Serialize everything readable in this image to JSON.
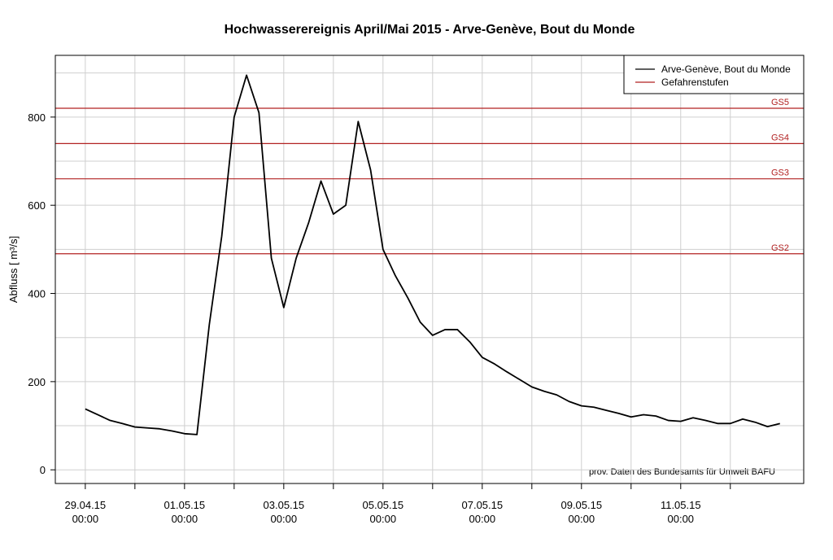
{
  "chart_data": {
    "type": "line",
    "title": "Hochwasserereignis April/Mai 2015 - Arve-Genève, Bout du Monde",
    "y_label": "Abfluss [ m³/s]",
    "annotation": "prov. Daten des Bundesamts für Umwelt BAFU",
    "x": [
      "29.04.15 00:00",
      "29.04.15 06:00",
      "29.04.15 12:00",
      "29.04.15 18:00",
      "30.04.15 00:00",
      "30.04.15 06:00",
      "30.04.15 12:00",
      "30.04.15 18:00",
      "01.05.15 00:00",
      "01.05.15 06:00",
      "01.05.15 12:00",
      "01.05.15 18:00",
      "02.05.15 00:00",
      "02.05.15 06:00",
      "02.05.15 12:00",
      "02.05.15 18:00",
      "03.05.15 00:00",
      "03.05.15 06:00",
      "03.05.15 12:00",
      "03.05.15 18:00",
      "04.05.15 00:00",
      "04.05.15 06:00",
      "04.05.15 12:00",
      "04.05.15 18:00",
      "05.05.15 00:00",
      "05.05.15 06:00",
      "05.05.15 12:00",
      "05.05.15 18:00",
      "06.05.15 00:00",
      "06.05.15 06:00",
      "06.05.15 12:00",
      "06.05.15 18:00",
      "07.05.15 00:00",
      "07.05.15 06:00",
      "07.05.15 12:00",
      "07.05.15 18:00",
      "08.05.15 00:00",
      "08.05.15 06:00",
      "08.05.15 12:00",
      "08.05.15 18:00",
      "09.05.15 00:00",
      "09.05.15 06:00",
      "09.05.15 12:00",
      "09.05.15 18:00",
      "10.05.15 00:00",
      "10.05.15 06:00",
      "10.05.15 12:00",
      "10.05.15 18:00",
      "11.05.15 00:00",
      "11.05.15 06:00",
      "11.05.15 12:00",
      "11.05.15 18:00",
      "12.05.15 00:00",
      "12.05.15 06:00",
      "12.05.15 12:00",
      "12.05.15 18:00",
      "13.05.15 00:00"
    ],
    "series": [
      {
        "name": "Arve-Genève, Bout du Monde",
        "color": "#000000",
        "values": [
          138,
          125,
          112,
          105,
          97,
          95,
          93,
          88,
          82,
          80,
          330,
          530,
          800,
          895,
          810,
          480,
          368,
          480,
          560,
          655,
          580,
          600,
          790,
          680,
          500,
          440,
          390,
          335,
          305,
          318,
          318,
          290,
          255,
          240,
          222,
          205,
          188,
          178,
          170,
          155,
          145,
          142,
          135,
          128,
          120,
          125,
          122,
          112,
          110,
          118,
          112,
          105,
          105,
          115,
          108,
          98,
          105
        ]
      }
    ],
    "thresholds_name": "Gefahrenstufen",
    "thresholds_color": "#b22222",
    "thresholds": [
      {
        "label": "GS5",
        "value": 820
      },
      {
        "label": "GS4",
        "value": 740
      },
      {
        "label": "GS3",
        "value": 660
      },
      {
        "label": "GS2",
        "value": 490
      }
    ],
    "xlim": [
      "28.04.15 09:30",
      "13.05.15 11:30"
    ],
    "xticks": [
      "29.04.15 00:00",
      "01.05.15 00:00",
      "03.05.15 00:00",
      "05.05.15 00:00",
      "07.05.15 00:00",
      "09.05.15 00:00",
      "11.05.15 00:00"
    ],
    "x_minor_ticks": [
      "30.04.15 00:00",
      "02.05.15 00:00",
      "04.05.15 00:00",
      "06.05.15 00:00",
      "08.05.15 00:00",
      "10.05.15 00:00",
      "12.05.15 00:00"
    ],
    "ylim": [
      -31,
      940
    ],
    "yticks": [
      0,
      200,
      400,
      600,
      800
    ],
    "y_minor_ticks": [
      100,
      300,
      500,
      700,
      900
    ],
    "grid": true,
    "legend": "top-right"
  }
}
